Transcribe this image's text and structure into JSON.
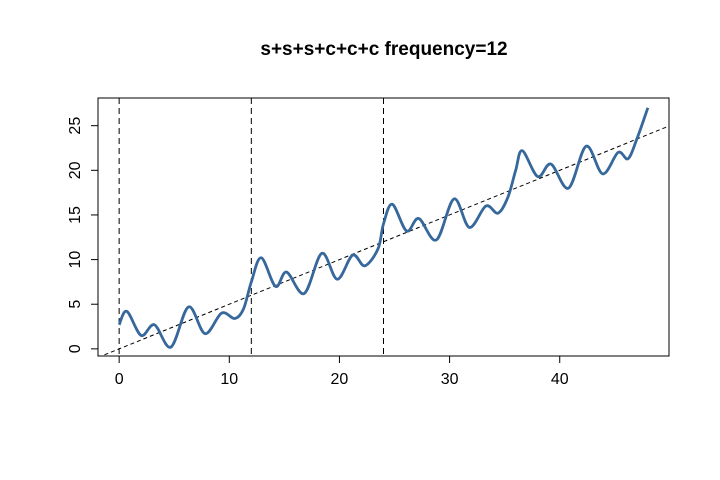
{
  "chart_data": {
    "type": "line",
    "title": "s+s+s+c+c+c frequency=12",
    "x": [
      0,
      0.7,
      2,
      3.2,
      4.7,
      6.3,
      7.8,
      9.3,
      10.5,
      11.3,
      12,
      12.9,
      14.2,
      15.2,
      16.8,
      18.4,
      19.8,
      21.2,
      22.3,
      23.5,
      24,
      24.8,
      26.1,
      27.2,
      28.8,
      30.4,
      31.8,
      33.3,
      34.4,
      35.3,
      36,
      36.6,
      38,
      39.2,
      40.8,
      42.4,
      43.9,
      45.3,
      46.2,
      47,
      48
    ],
    "series": [
      {
        "color": "#36689b",
        "values": [
          2.7,
          4.2,
          1.5,
          2.7,
          0.2,
          4.7,
          1.7,
          4.0,
          3.4,
          4.5,
          7.5,
          10.2,
          7.0,
          8.6,
          6.2,
          10.7,
          7.8,
          10.5,
          9.3,
          11.2,
          14.0,
          16.2,
          13.2,
          14.6,
          12.2,
          16.8,
          13.6,
          16.0,
          15.2,
          17.0,
          20.0,
          22.2,
          19.3,
          20.7,
          18.0,
          22.7,
          19.6,
          22.0,
          21.3,
          23.5,
          27.0
        ]
      }
    ],
    "xlim": [
      -1.92,
      49.92
    ],
    "ylim": [
      -0.8,
      28.1
    ],
    "xticks": [
      0,
      10,
      20,
      30,
      40
    ],
    "yticks": [
      0,
      5,
      10,
      15,
      20,
      25
    ],
    "vlines": [
      0,
      12,
      24
    ],
    "trend": {
      "intercept": 0,
      "slope": 0.5
    }
  }
}
